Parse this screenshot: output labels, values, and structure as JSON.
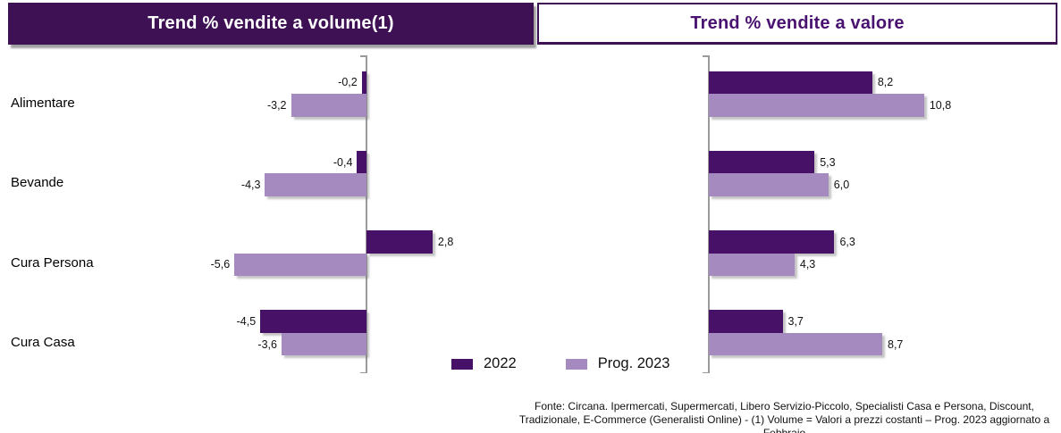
{
  "panels": {
    "left_title": "Trend % vendite a volume(1)",
    "right_title": "Trend % vendite a valore"
  },
  "chart_data": [
    {
      "type": "bar",
      "orientation": "horizontal",
      "title": "Trend % vendite a volume(1)",
      "categories": [
        "Alimentare",
        "Bevande",
        "Cura Persona",
        "Cura Casa"
      ],
      "series": [
        {
          "name": "2022",
          "color": "#461167",
          "values": [
            -0.2,
            -0.4,
            2.8,
            -4.5
          ]
        },
        {
          "name": "Prog. 2023",
          "color": "#A58AC0",
          "values": [
            -3.2,
            -4.3,
            -5.6,
            -3.6
          ]
        }
      ],
      "value_labels": [
        [
          "-0,2",
          "-0,4",
          "2,8",
          "-4,5"
        ],
        [
          "-3,2",
          "-4,3",
          "-5,6",
          "-3,6"
        ]
      ],
      "xlim": [
        -6.2,
        3.5
      ],
      "grid": false,
      "legend_position": "bottom"
    },
    {
      "type": "bar",
      "orientation": "horizontal",
      "title": "Trend % vendite a valore",
      "categories": [
        "Alimentare",
        "Bevande",
        "Cura Persona",
        "Cura Casa"
      ],
      "series": [
        {
          "name": "2022",
          "color": "#461167",
          "values": [
            8.2,
            5.3,
            6.3,
            3.7
          ]
        },
        {
          "name": "Prog. 2023",
          "color": "#A58AC0",
          "values": [
            10.8,
            6.0,
            4.3,
            8.7
          ]
        }
      ],
      "value_labels": [
        [
          "8,2",
          "5,3",
          "6,3",
          "3,7"
        ],
        [
          "10,8",
          "6,0",
          "4,3",
          "8,7"
        ]
      ],
      "xlim": [
        0,
        11.5
      ],
      "grid": false,
      "legend_position": "bottom"
    }
  ],
  "legend": {
    "items": [
      {
        "label": "2022",
        "color": "#461167"
      },
      {
        "label": "Prog. 2023",
        "color": "#A58AC0"
      }
    ]
  },
  "footer": {
    "source_note": "Fonte: Circana. Ipermercati, Supermercati, Libero Servizio-Piccolo, Specialisti Casa e Persona, Discount, Tradizionale, E-Commerce (Generalisti Online) - (1) Volume = Valori a prezzi costanti – Prog. 2023 aggiornato a Febbraio"
  },
  "colors": {
    "banner_bg": "#3E1154",
    "banner_text": "#FFFFFF",
    "outlined_title_text": "#4A1270",
    "axis": "#9A9A9A",
    "series_2022": "#461167",
    "series_prog_2023": "#A58AC0"
  }
}
